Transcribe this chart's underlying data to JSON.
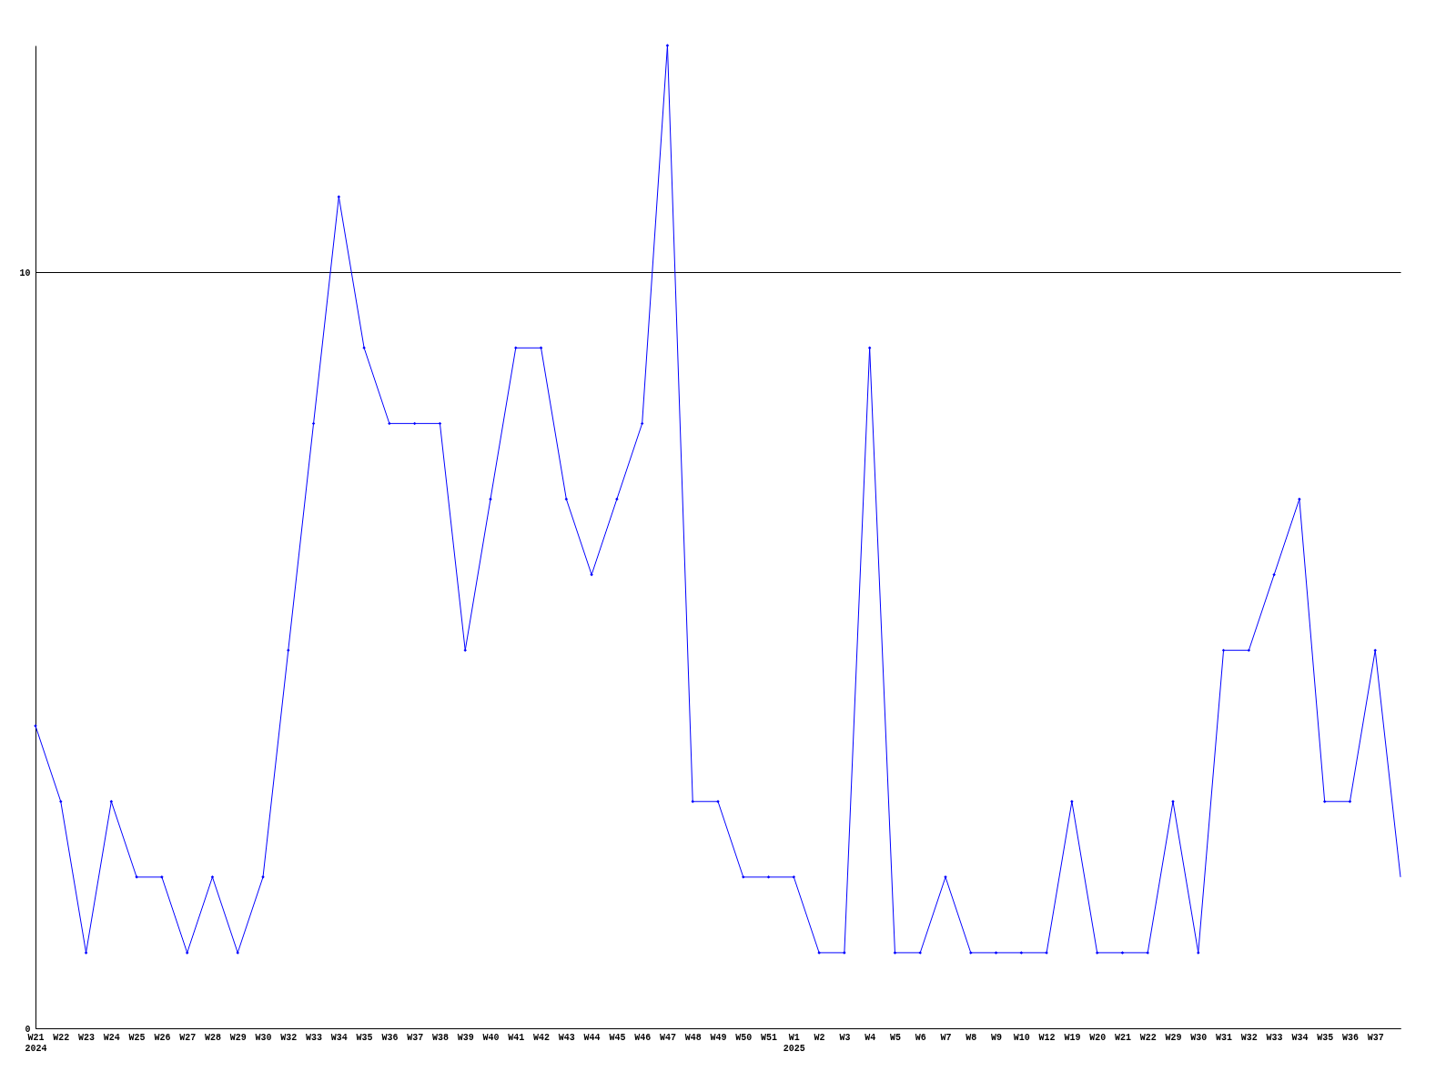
{
  "chart_data": {
    "type": "line",
    "categories": [
      "W21\n2024",
      "W22",
      "W23",
      "W24",
      "W25",
      "W26",
      "W27",
      "W28",
      "W29",
      "W30",
      "W32",
      "W33",
      "W34",
      "W35",
      "W36",
      "W37",
      "W38",
      "W39",
      "W40",
      "W41",
      "W42",
      "W43",
      "W44",
      "W45",
      "W46",
      "W47",
      "W48",
      "W49",
      "W50",
      "W51",
      "W1\n2025",
      "W2",
      "W3",
      "W4",
      "W5",
      "W6",
      "W7",
      "W8",
      "W9",
      "W10",
      "W12",
      "W19",
      "W20",
      "W21",
      "W22",
      "W29",
      "W30",
      "W31",
      "W32",
      "W33",
      "W34",
      "W35",
      "W36",
      "W37",
      null
    ],
    "series": [
      {
        "color": "#0000ff",
        "values": [
          4,
          3,
          1,
          3,
          2,
          2,
          1,
          2,
          1,
          2,
          5,
          8,
          11,
          9,
          8,
          8,
          8,
          5,
          7,
          9,
          9,
          7,
          6,
          7,
          8,
          13,
          3,
          3,
          2,
          2,
          2,
          1,
          1,
          9,
          1,
          1,
          2,
          1,
          1,
          1,
          1,
          3,
          1,
          1,
          1,
          3,
          1,
          5,
          5,
          6,
          7,
          3,
          3,
          5,
          2
        ]
      }
    ],
    "ylim": [
      0,
      13
    ],
    "yticks": [
      0,
      10
    ],
    "grid": "y",
    "marker": "diamond"
  }
}
